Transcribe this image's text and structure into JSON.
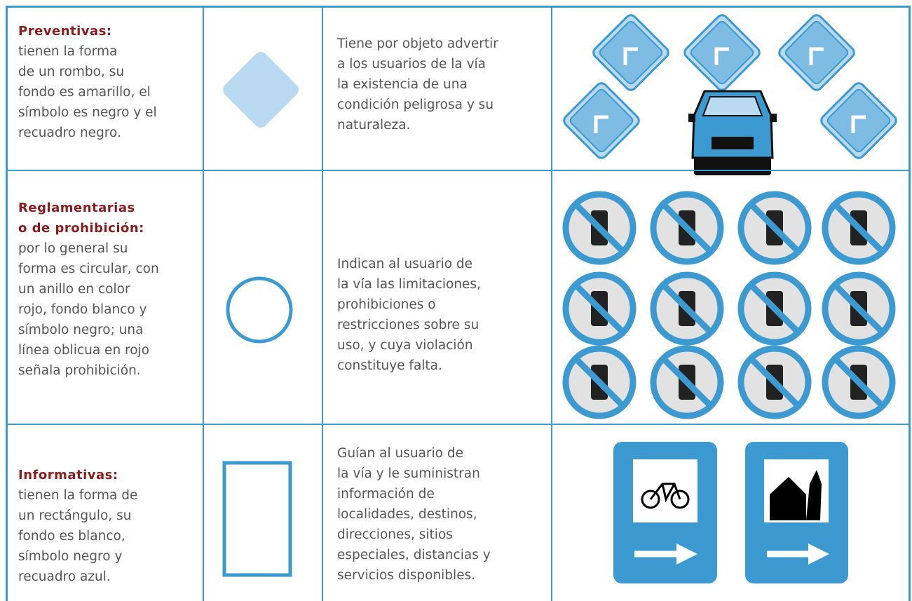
{
  "table": {
    "rows": [
      {
        "title_lines": [
          "Preventivas:"
        ],
        "description_lines": [
          "tienen la forma",
          "de un rombo, su",
          "fondo es amarillo, el",
          "símbolo es negro y el",
          "recuadro negro."
        ],
        "purpose_lines": [
          "Tiene por objeto advertir",
          "a los usuarios de la vía",
          "la existencia de una",
          "condición peligrosa y su",
          "naturaleza."
        ]
      },
      {
        "title_lines": [
          "Reglamentarias",
          "o de prohibición:"
        ],
        "description_lines": [
          "por lo general su",
          "forma es circular, con",
          "un anillo en color",
          "rojo, fondo blanco y",
          "símbolo negro; una",
          "línea oblicua en rojo",
          "señala prohibición."
        ],
        "purpose_lines": [
          "Indican al usuario de",
          "la vía las limitaciones,",
          "prohibiciones o",
          "restricciones sobre su",
          "uso, y cuya violación",
          "constituye falta."
        ]
      },
      {
        "title_lines": [
          "Informativas:"
        ],
        "description_lines": [
          "tienen la forma de",
          "un rectángulo, su",
          "fondo es blanco,",
          "símbolo negro y",
          "recuadro azul."
        ],
        "purpose_lines": [
          "Guían al usuario de",
          "la vía y le suministran",
          "información de",
          "localidades, destinos,",
          "direcciones, sitios",
          "especiales, distancias y",
          "servicios disponibles."
        ]
      }
    ]
  }
}
